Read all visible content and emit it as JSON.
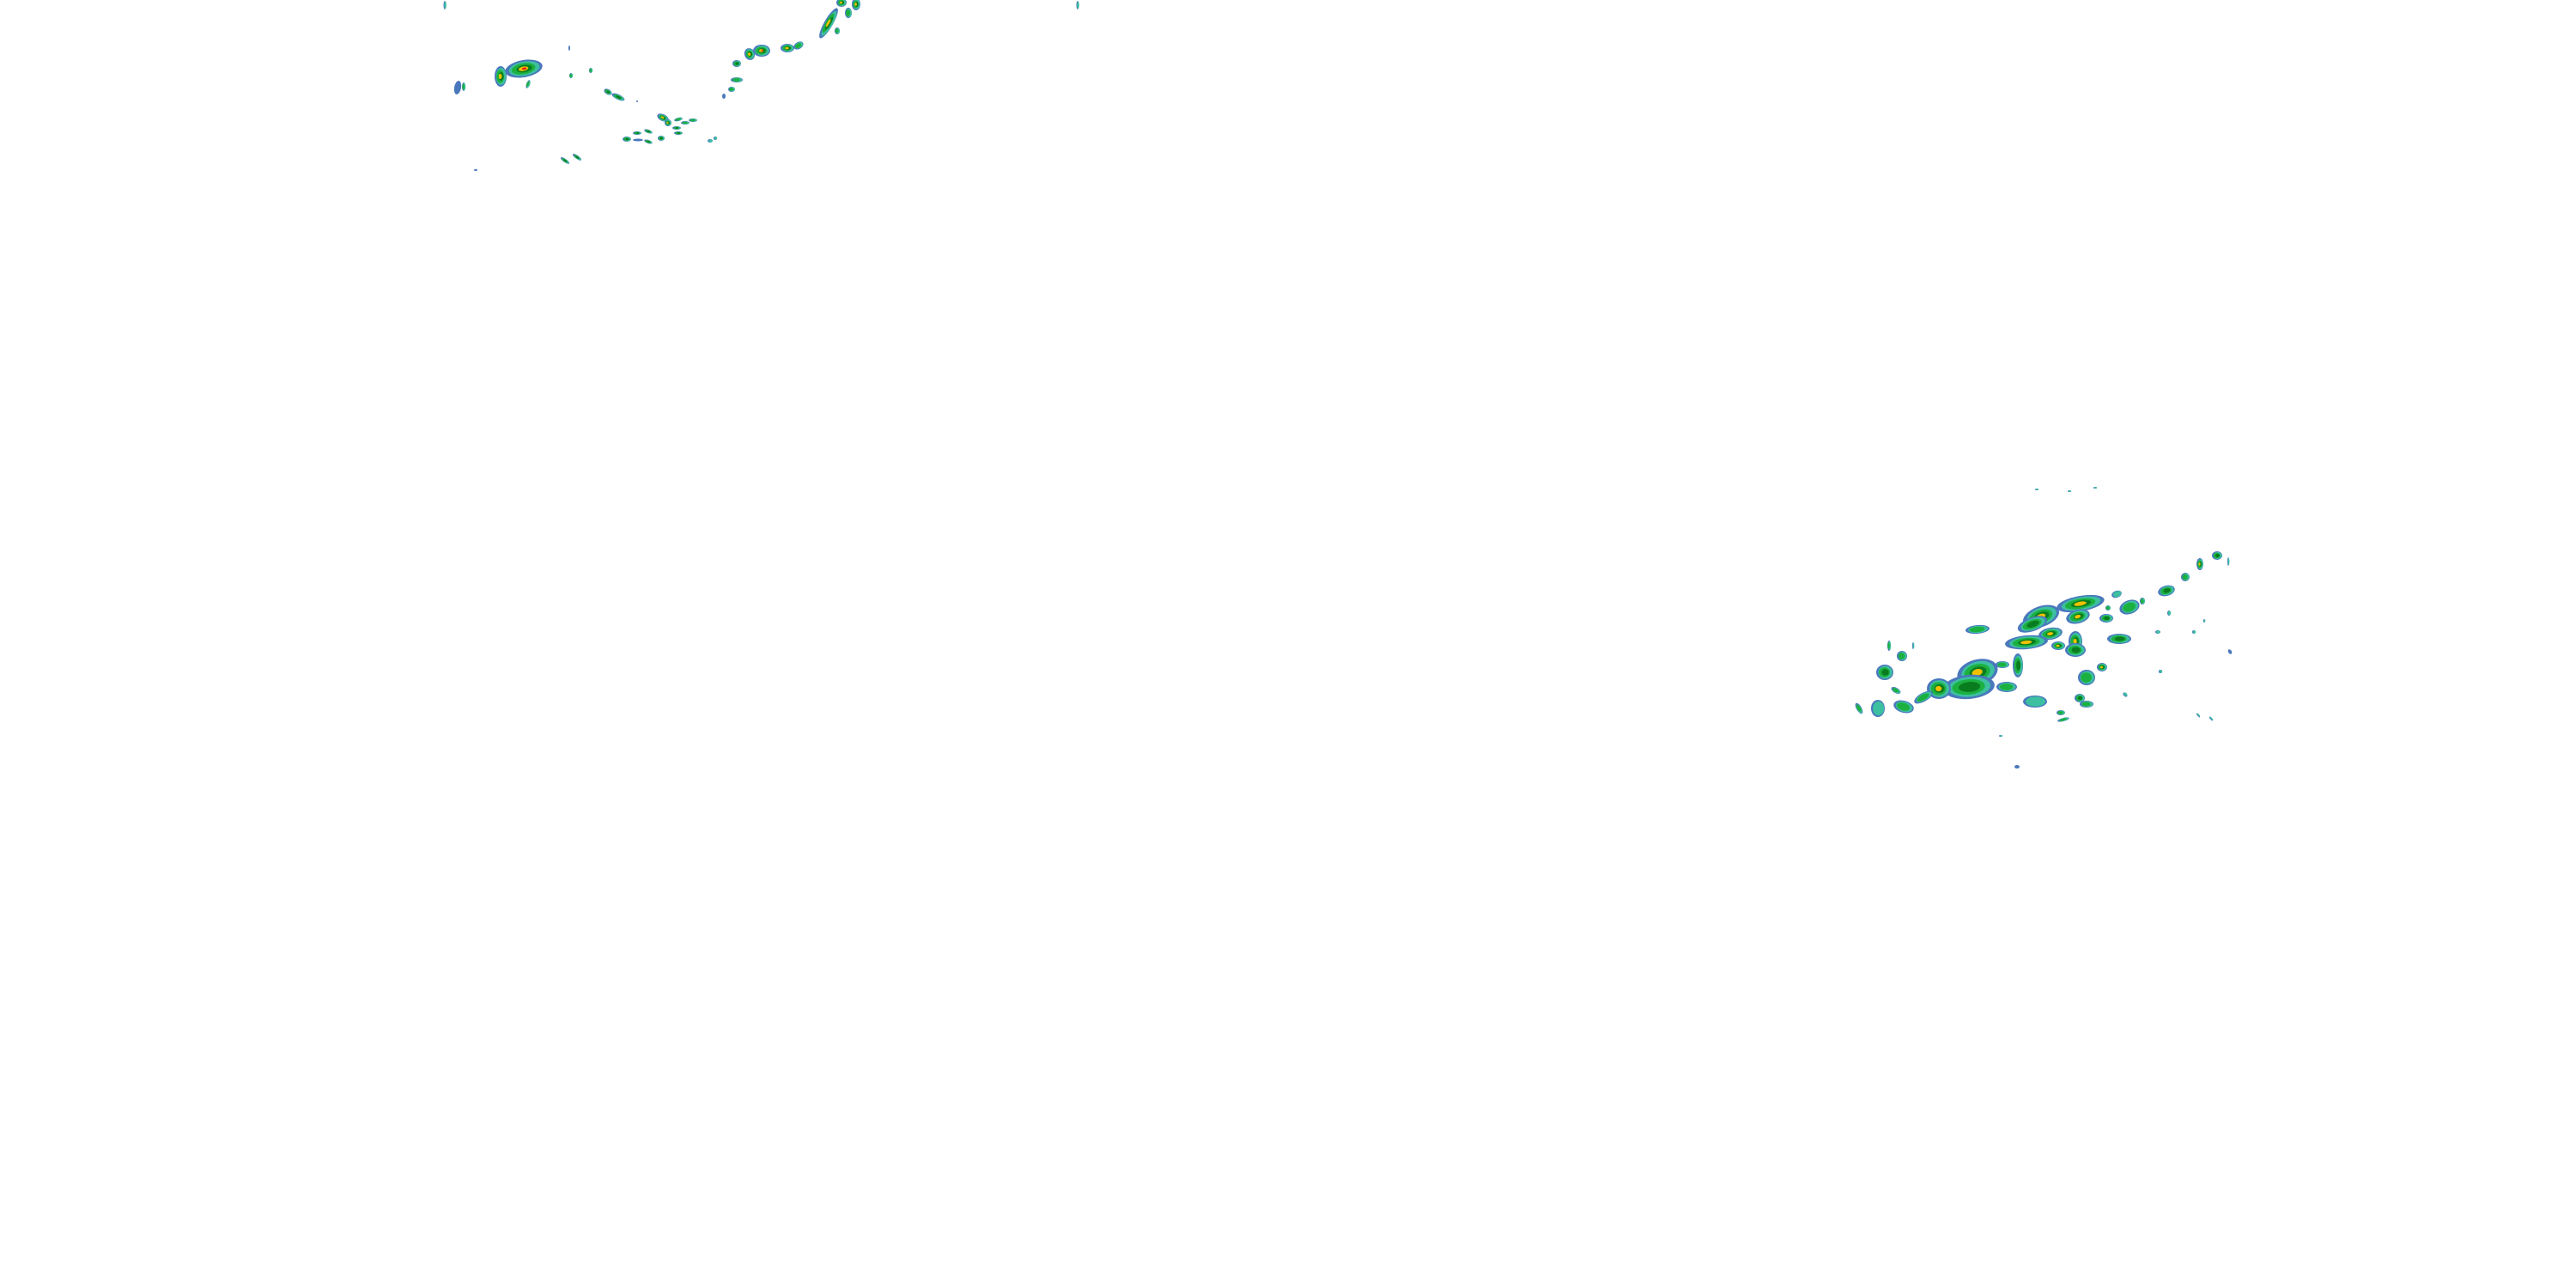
{
  "map": {
    "layer": "precipitation-radar-overlay",
    "background": "#ffffff",
    "intensity_colors": {
      "light": "#4a78bc",
      "light_moderate": "#3cc0a0",
      "moderate": "#1cb040",
      "moderate_heavy": "#0a7c20",
      "heavy": "#f0c000",
      "very_heavy": "#e02020"
    }
  }
}
